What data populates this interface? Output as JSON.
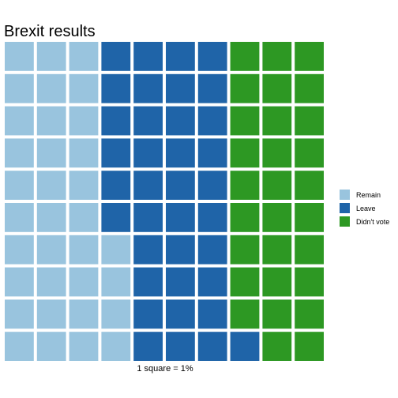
{
  "chart_data": {
    "type": "waffle",
    "title": "Brexit results",
    "caption": "1 square = 1%",
    "grid": {
      "columns": 10,
      "rows": 10
    },
    "fill_order": "column-major, bottom-to-top",
    "categories": [
      "Remain",
      "Leave",
      "Didn't vote"
    ],
    "values": [
      34,
      37,
      29
    ],
    "colors": [
      "#99c4de",
      "#1f64a8",
      "#2d9823"
    ],
    "legend_position": "right"
  }
}
